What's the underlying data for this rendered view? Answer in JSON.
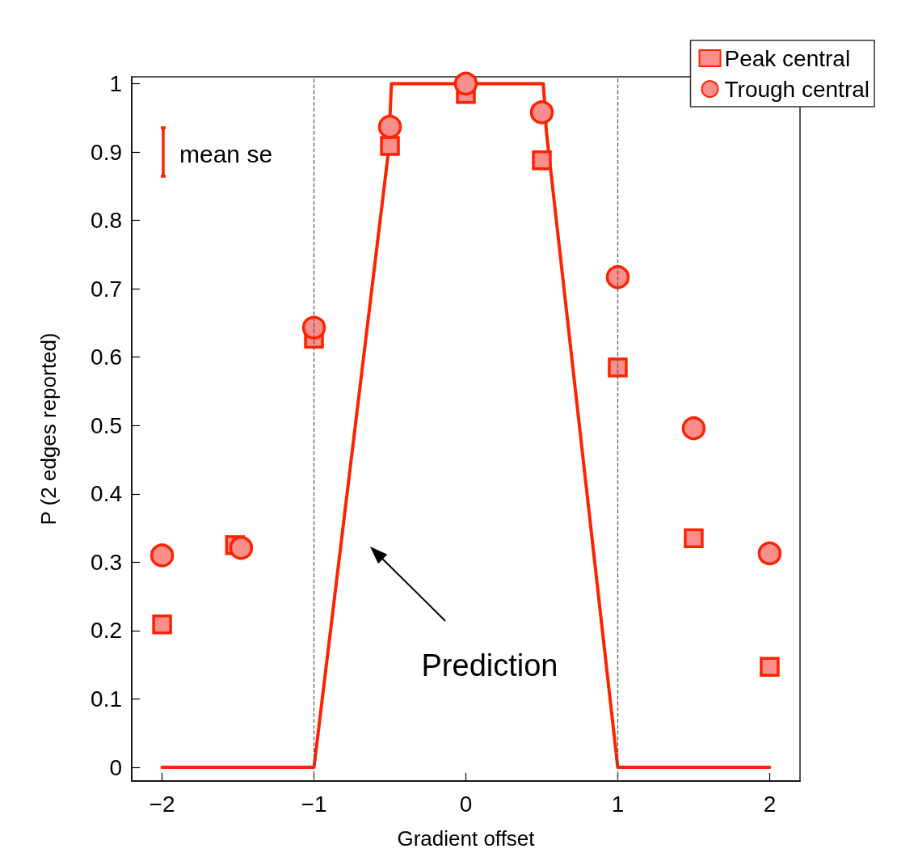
{
  "chart_data": {
    "type": "scatter",
    "xlabel": "Gradient offset",
    "ylabel": "P (2 edges reported)",
    "xlim": [
      -2.2,
      2.2
    ],
    "ylim": [
      -0.02,
      1.01
    ],
    "xticks": [
      {
        "value": -2,
        "label": "−2"
      },
      {
        "value": -1,
        "label": "−1"
      },
      0,
      1,
      2
    ],
    "yticks": [
      0,
      0.1,
      0.2,
      0.3,
      0.4,
      0.5,
      0.6,
      0.7,
      0.8,
      0.9,
      1
    ],
    "grid": false,
    "legend": "top right",
    "series": [
      {
        "type": "line",
        "marker": "none",
        "line_style": "solid",
        "color": "#ff2200",
        "x": [
          -2,
          -1,
          -0.51,
          -0.49,
          0.51,
          0.53,
          1,
          2
        ],
        "values": [
          0,
          0,
          0.9,
          1,
          1,
          0.93,
          0,
          0
        ]
      },
      {
        "name": "Peak central",
        "marker": "square",
        "color": "#f98e8a",
        "x": [
          -2,
          -1.52,
          -1,
          -0.5,
          0,
          0.5,
          1,
          1.5,
          2
        ],
        "values": [
          0.209,
          0.325,
          0.627,
          0.909,
          0.985,
          0.888,
          0.585,
          0.335,
          0.147
        ]
      },
      {
        "name": "Trough central",
        "marker": "circle",
        "color": "#f98e8a",
        "x": [
          -2,
          -1.48,
          -1,
          -0.5,
          0,
          0.5,
          1,
          1.5,
          2
        ],
        "values": [
          0.31,
          0.321,
          0.643,
          0.937,
          1.0,
          0.958,
          0.717,
          0.496,
          0.313
        ]
      }
    ],
    "ref_lines": [
      {
        "axis": "x",
        "value": -1,
        "color": "#555555",
        "line_style": "dashed"
      },
      {
        "axis": "x",
        "value": 1,
        "color": "#555555",
        "line_style": "dashed"
      }
    ],
    "annotations": [
      "Prediction",
      "mean se"
    ]
  }
}
